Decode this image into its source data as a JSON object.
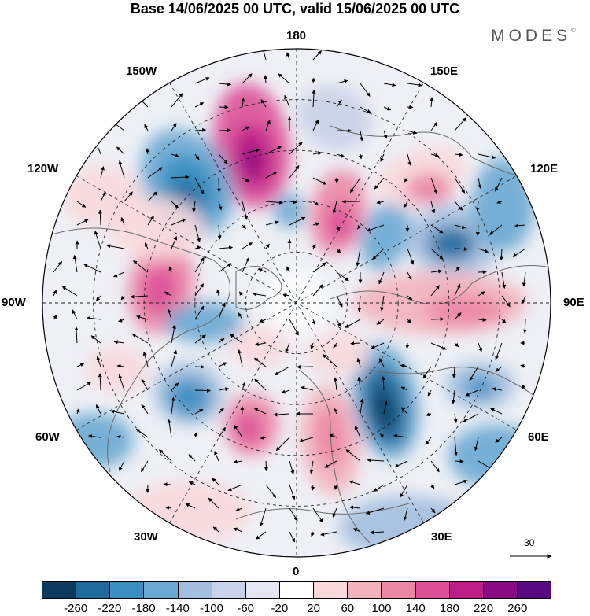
{
  "title": "Base 14/06/2025 00 UTC, valid 15/06/2025 00 UTC",
  "brand": {
    "name": "MODES",
    "mark": "©"
  },
  "longitude_labels": {
    "top": "180",
    "bottom": "0",
    "left": "90W",
    "right": "90E",
    "upper_left_1": "150W",
    "upper_left_2": "120W",
    "upper_right_1": "150E",
    "upper_right_2": "120E",
    "lower_left_1": "60W",
    "lower_left_2": "30W",
    "lower_right_1": "60E",
    "lower_right_2": "30E"
  },
  "reference_vector": {
    "value": "30"
  },
  "colorbar": {
    "colors": [
      "#0b3a5e",
      "#1f6a9c",
      "#3a8ec2",
      "#6aa9d3",
      "#a3bfdf",
      "#c9d2e8",
      "#e6e6f2",
      "#ffffff",
      "#f9d9dc",
      "#f3b3bd",
      "#ec86a5",
      "#dd4f97",
      "#bb1f86",
      "#8a0a84",
      "#5a0a80"
    ],
    "ticks": [
      "-260",
      "-220",
      "-180",
      "-140",
      "-100",
      "-60",
      "-20",
      "20",
      "60",
      "100",
      "140",
      "180",
      "220",
      "260"
    ]
  }
}
